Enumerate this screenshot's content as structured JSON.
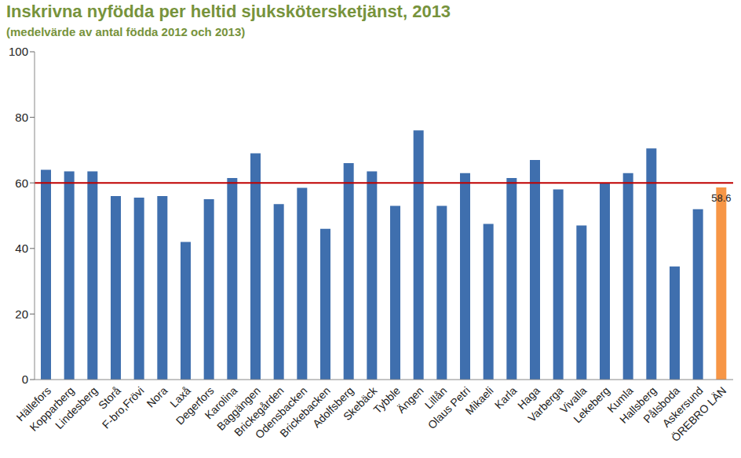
{
  "chart_data": {
    "type": "bar",
    "title": "Inskrivna nyfödda per heltid sjukskötersketjänst, 2013",
    "subtitle": "(medelvärde av antal födda 2012 och 2013)",
    "categories": [
      "Hällefors",
      "Kopparberg",
      "Lindesberg",
      "Storå",
      "F-bro,Frövi",
      "Nora",
      "Laxå",
      "Degerfors",
      "Karolina",
      "Baggängen",
      "Brickegården",
      "Odensbacken",
      "Brickebacken",
      "Adolfsberg",
      "Skebäck",
      "Tybble",
      "Ängen",
      "Lillån",
      "Olaus Petri",
      "Mikaeli",
      "Karla",
      "Haga",
      "Varberga",
      "Vivalla",
      "Lekeberg",
      "Kumla",
      "Hallsberg",
      "Pålsboda",
      "Askersund",
      "ÖREBRO LÄN"
    ],
    "values": [
      64,
      63.5,
      63.5,
      56,
      55.5,
      56,
      42,
      55,
      61.5,
      69,
      53.5,
      58.5,
      46,
      66,
      63.5,
      53,
      76,
      53,
      63,
      47.5,
      61.5,
      67,
      58,
      47,
      60,
      63,
      70.5,
      34.5,
      52,
      58.6
    ],
    "value_labels": [
      null,
      null,
      null,
      null,
      null,
      null,
      null,
      null,
      null,
      null,
      null,
      null,
      null,
      null,
      null,
      null,
      null,
      null,
      null,
      null,
      null,
      null,
      null,
      null,
      null,
      null,
      null,
      null,
      null,
      "58.6"
    ],
    "colors": [
      "#3f6fae",
      "#3f6fae",
      "#3f6fae",
      "#3f6fae",
      "#3f6fae",
      "#3f6fae",
      "#3f6fae",
      "#3f6fae",
      "#3f6fae",
      "#3f6fae",
      "#3f6fae",
      "#3f6fae",
      "#3f6fae",
      "#3f6fae",
      "#3f6fae",
      "#3f6fae",
      "#3f6fae",
      "#3f6fae",
      "#3f6fae",
      "#3f6fae",
      "#3f6fae",
      "#3f6fae",
      "#3f6fae",
      "#3f6fae",
      "#3f6fae",
      "#3f6fae",
      "#3f6fae",
      "#3f6fae",
      "#3f6fae",
      "#f79646"
    ],
    "reference_line": {
      "value": 60,
      "color": "#c00000"
    },
    "ylim": [
      0,
      100
    ],
    "yticks": [
      0,
      20,
      40,
      60,
      80,
      100
    ],
    "grid": false
  }
}
